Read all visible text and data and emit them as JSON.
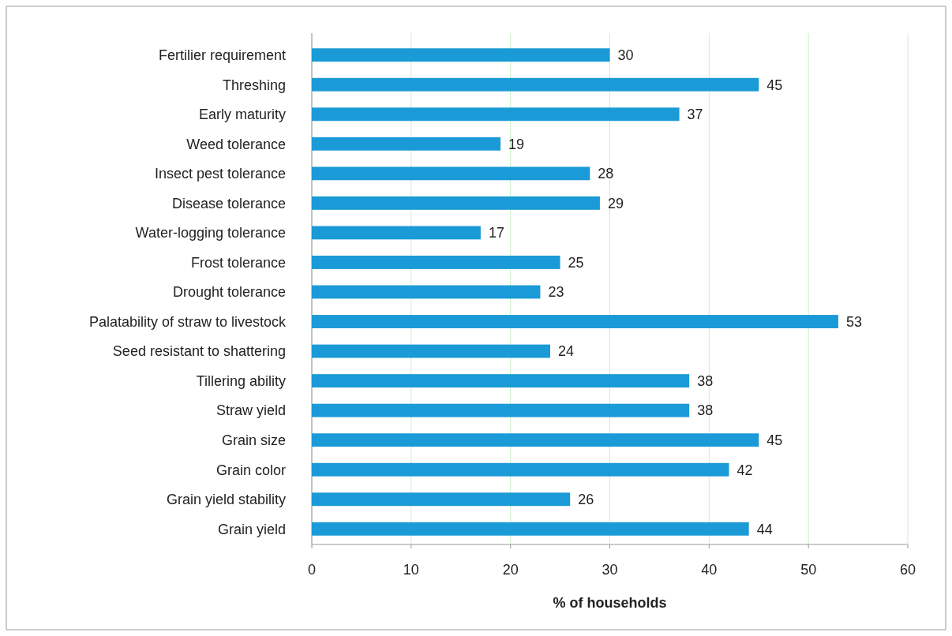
{
  "chart_data": {
    "type": "bar",
    "orientation": "horizontal",
    "xlabel": "% of households",
    "categories": [
      "Fertilier requirement",
      "Threshing",
      "Early maturity",
      "Weed tolerance",
      "Insect pest tolerance",
      "Disease tolerance",
      "Water-logging tolerance",
      "Frost tolerance",
      "Drought tolerance",
      "Palatability of straw to livestock",
      "Seed resistant to shattering",
      "Tillering ability",
      "Straw yield",
      "Grain size",
      "Grain color",
      "Grain yield stability",
      "Grain yield"
    ],
    "values": [
      30,
      45,
      37,
      19,
      28,
      29,
      17,
      25,
      23,
      53,
      24,
      38,
      38,
      45,
      42,
      26,
      44
    ],
    "color": "#1a9ad6",
    "xlim": [
      0,
      60
    ],
    "xticks": [
      0,
      10,
      20,
      30,
      40,
      50,
      60
    ],
    "grid": "x",
    "data_labels": true
  }
}
